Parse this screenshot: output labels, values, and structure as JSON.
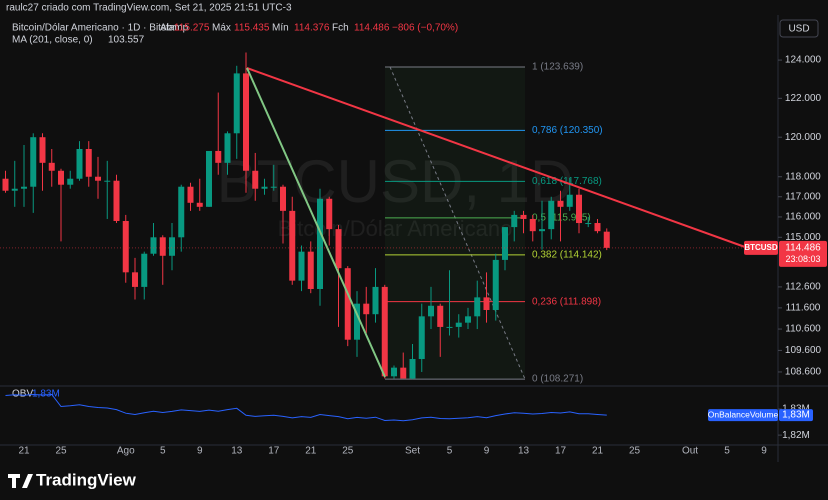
{
  "chart_data": {
    "type": "candlestick",
    "credit": "raulc27 criado com TradingView.com, Set 21, 2025 21:51 UTC-3",
    "title": "Bitcoin/Dólar Americano · 1D · Bitstamp",
    "ohlc_labels": [
      "Abr",
      "Máx",
      "Mín",
      "Fch"
    ],
    "change": "−806 (−0,70%)",
    "currency": "USD",
    "symbol": "BTCUSD",
    "countdown": "23:08:03",
    "watermark": "BTCUSD, 1D",
    "watermark_subtitle": "Bitcoin/Dólar Americano",
    "ma": {
      "label": "MA (201, close, 0)",
      "value": 103.557
    },
    "up_color": "#089981",
    "down_color": "#f23645",
    "log_scale": true,
    "ylim": [
      108.0,
      126.4
    ],
    "yticks": [
      {
        "value": 124,
        "label": "124.000"
      },
      {
        "value": 122,
        "label": "122.000"
      },
      {
        "value": 120,
        "label": "120.000"
      },
      {
        "value": 118,
        "label": "118.000"
      },
      {
        "value": 117,
        "label": "117.000"
      },
      {
        "value": 116,
        "label": "116.000"
      },
      {
        "value": 115,
        "label": "115.000"
      },
      {
        "value": 112.6,
        "label": "112.600"
      },
      {
        "value": 111.6,
        "label": "111.600"
      },
      {
        "value": 110.6,
        "label": "110.600"
      },
      {
        "value": 109.6,
        "label": "109.600"
      },
      {
        "value": 108.6,
        "label": "108.600"
      }
    ],
    "categories": [
      null,
      null,
      "21",
      null,
      null,
      null,
      "25",
      null,
      null,
      null,
      null,
      null,
      null,
      "Ago",
      null,
      null,
      null,
      "5",
      null,
      null,
      null,
      "9",
      null,
      null,
      null,
      "13",
      null,
      null,
      null,
      "17",
      null,
      null,
      null,
      "21",
      null,
      null,
      null,
      "25",
      null,
      null,
      null,
      null,
      null,
      null,
      "Set",
      null,
      null,
      null,
      "5",
      null,
      null,
      null,
      "9",
      null,
      null,
      null,
      "13",
      null,
      null,
      null,
      "17",
      null,
      null,
      null,
      "21",
      null,
      null,
      null,
      "25",
      null,
      null,
      null,
      null,
      null,
      "Out",
      null,
      null,
      null,
      "5",
      null,
      null,
      null,
      "9"
    ],
    "open": [
      117.9,
      117.3,
      117.4,
      117.5,
      120.0,
      118.7,
      118.3,
      117.6,
      117.9,
      119.4,
      118.0,
      117.8,
      117.8,
      115.8,
      113.3,
      112.6,
      114.2,
      115.0,
      114.1,
      115.0,
      117.5,
      116.7,
      116.5,
      119.3,
      118.7,
      120.2,
      123.3,
      118.3,
      117.4,
      117.5,
      117.5,
      116.3,
      112.9,
      114.3,
      112.5,
      116.9,
      115.4,
      113.5,
      110.1,
      111.8,
      111.3,
      112.6,
      108.4,
      108.8,
      108.3,
      109.2,
      111.2,
      111.7,
      110.7,
      110.7,
      110.9,
      111.2,
      112.1,
      111.5,
      113.9,
      115.5,
      116.1,
      115.9,
      115.3,
      115.4,
      116.8,
      116.5,
      117.1,
      115.7,
      115.7,
      115.275,
      null,
      null,
      null,
      null,
      null,
      null,
      null,
      null,
      null,
      null,
      null,
      null,
      null,
      null,
      null,
      null,
      null
    ],
    "high": [
      118.3,
      118.8,
      119.6,
      120.2,
      120.2,
      119.4,
      118.4,
      118.3,
      119.8,
      119.8,
      119.0,
      118.8,
      118.1,
      116.1,
      114.0,
      114.3,
      115.7,
      115.1,
      115.7,
      117.6,
      117.7,
      117.9,
      119.3,
      122.3,
      120.3,
      123.7,
      124.4,
      119.2,
      117.9,
      118.6,
      117.6,
      117.0,
      114.6,
      114.8,
      117.4,
      117.0,
      115.6,
      113.6,
      112.4,
      112.6,
      113.5,
      112.7,
      108.9,
      109.5,
      109.9,
      111.8,
      112.6,
      111.8,
      113.4,
      111.3,
      111.6,
      112.9,
      113.3,
      114.2,
      115.5,
      116.3,
      116.3,
      116.1,
      116.8,
      117.0,
      117.3,
      117.9,
      117.4,
      116.0,
      115.9,
      115.435,
      null,
      null,
      null,
      null,
      null,
      null,
      null,
      null,
      null,
      null,
      null,
      null,
      null,
      null,
      null,
      null,
      null
    ],
    "low": [
      117.2,
      116.5,
      116.5,
      116.2,
      117.3,
      117.5,
      114.8,
      117.4,
      117.8,
      117.5,
      116.9,
      115.9,
      115.7,
      112.8,
      112.0,
      112.0,
      114.1,
      112.7,
      113.4,
      114.3,
      116.3,
      116.3,
      116.5,
      118.1,
      118.1,
      118.9,
      117.2,
      116.8,
      117.1,
      117.3,
      114.7,
      112.7,
      112.4,
      112.3,
      111.7,
      114.6,
      110.7,
      109.8,
      109.3,
      110.4,
      110.9,
      108.3,
      108.3,
      108.3,
      108.271,
      108.6,
      110.6,
      109.3,
      110.3,
      110.2,
      110.6,
      110.6,
      110.9,
      111.0,
      113.4,
      114.8,
      115.2,
      114.8,
      114.4,
      114.9,
      114.8,
      116.3,
      115.2,
      115.5,
      115.2,
      114.376,
      null,
      null,
      null,
      null,
      null,
      null,
      null,
      null,
      null,
      null,
      null,
      null,
      null,
      null,
      null,
      null,
      null
    ],
    "close": [
      117.3,
      117.4,
      117.5,
      120.0,
      118.7,
      118.3,
      117.6,
      117.9,
      119.4,
      118.0,
      117.8,
      117.8,
      115.8,
      113.3,
      112.6,
      114.2,
      115.0,
      114.1,
      115.0,
      117.5,
      116.7,
      116.5,
      119.3,
      118.7,
      120.2,
      123.3,
      118.3,
      117.4,
      117.5,
      117.5,
      116.3,
      112.9,
      114.3,
      112.5,
      116.9,
      115.4,
      113.5,
      110.1,
      111.8,
      111.3,
      112.6,
      108.4,
      108.8,
      108.3,
      109.2,
      111.2,
      111.7,
      110.7,
      110.7,
      110.9,
      111.2,
      112.1,
      111.5,
      113.9,
      115.5,
      116.1,
      115.9,
      115.3,
      115.4,
      116.8,
      116.5,
      117.1,
      115.7,
      115.7,
      115.3,
      114.486,
      null,
      null,
      null,
      null,
      null,
      null,
      null,
      null,
      null,
      null,
      null,
      null,
      null,
      null,
      null,
      null,
      null
    ],
    "fib_levels": [
      {
        "value": 123.639,
        "label": "1 (123.639)",
        "color": "#787b86"
      },
      {
        "value": 120.35,
        "label": "0,786 (120.350)",
        "color": "#2196f3"
      },
      {
        "value": 117.768,
        "label": "0,618 (117.768)",
        "color": "#089981"
      },
      {
        "value": 115.955,
        "label": "0,5 (115.955)",
        "color": "#4caf50"
      },
      {
        "value": 114.142,
        "label": "0,382 (114.142)",
        "color": "#b2d235"
      },
      {
        "value": 111.898,
        "label": "0,236 (111.898)",
        "color": "#f23645"
      },
      {
        "value": 108.271,
        "label": "0 (108.271)",
        "color": "#787b86"
      }
    ],
    "obv": {
      "name": "OBV",
      "legend": "OnBalanceVolume",
      "last_label": "1,83M",
      "color": "#2962ff",
      "ylim": [
        1.8162,
        1.8381
      ],
      "yticks": [
        {
          "value": 1.83,
          "label": "1,83M"
        },
        {
          "value": 1.82,
          "label": "1,82M"
        }
      ],
      "values": [
        1.8352,
        1.8355,
        1.8353,
        1.8356,
        1.8354,
        1.8356,
        1.831,
        1.8313,
        1.8317,
        1.831,
        1.8306,
        1.8304,
        1.8298,
        1.8284,
        1.8279,
        1.8286,
        1.8292,
        1.8287,
        1.8291,
        1.8297,
        1.8294,
        1.8291,
        1.8296,
        1.8292,
        1.8298,
        1.8303,
        1.8276,
        1.8272,
        1.8274,
        1.8276,
        1.8272,
        1.8266,
        1.8271,
        1.8268,
        1.8279,
        1.8275,
        1.8271,
        1.8263,
        1.8268,
        1.8265,
        1.8269,
        1.8256,
        1.8258,
        1.8255,
        1.8259,
        1.8266,
        1.8269,
        1.8264,
        1.8263,
        1.8265,
        1.8267,
        1.8271,
        1.8267,
        1.8275,
        1.8281,
        1.8286,
        1.8284,
        1.8281,
        1.8283,
        1.8287,
        1.8285,
        1.8289,
        1.8282,
        1.8282,
        1.8279,
        1.8277,
        null,
        null,
        null,
        null,
        null,
        null,
        null,
        null,
        null,
        null,
        null,
        null,
        null,
        null,
        null,
        null,
        null
      ]
    }
  }
}
